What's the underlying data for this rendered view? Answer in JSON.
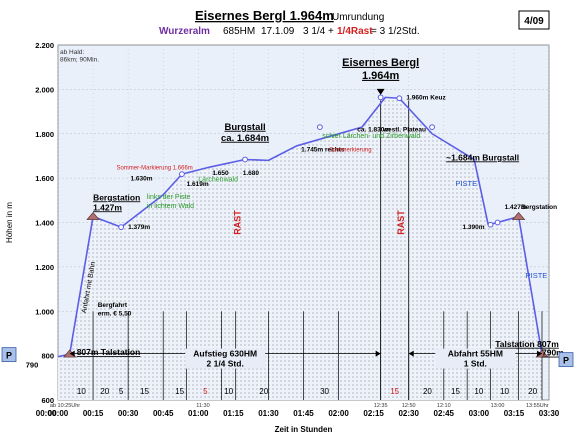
{
  "header": {
    "title": "Eisernes Bergl 1.964m",
    "title_suffix": "Umrundung",
    "subtitle_place": "Wurzeralm",
    "subtitle_hm": "685HM",
    "subtitle_date": "17.1.09",
    "subtitle_time_a": "3 1/4 +",
    "subtitle_rast": "1/4Rast",
    "subtitle_time_b": "= 3 1/2Std.",
    "page_badge": "4/09"
  },
  "colors": {
    "line": "#5b5ee6",
    "plot_bg": "#eaf0fa",
    "grid": "#b8bfcc",
    "rast": "#d42020",
    "forest": "#2a9a2a",
    "piste": "#2050d0",
    "marker_fill": "#b07070",
    "tag_bg": "#a9c1e8",
    "panel_bg": "#e7ecf7"
  },
  "chart_data": {
    "type": "line",
    "title": "Eisernes Bergl 1.964m",
    "xlabel": "Zeit in Stunden",
    "ylabel": "Höhen in m",
    "xlim": [
      0,
      210
    ],
    "ylim": [
      600,
      2200
    ],
    "y_ticks": [
      "600",
      "800",
      "1.000",
      "1.200",
      "1.400",
      "1.600",
      "1.800",
      "2.000",
      "2.200"
    ],
    "x_ticks": [
      "00:00",
      "00:15",
      "00:30",
      "00:45",
      "01:00",
      "01:15",
      "01:30",
      "01:45",
      "02:00",
      "02:15",
      "02:30",
      "02:45",
      "03:00",
      "03:15",
      "03:30"
    ],
    "x_ticks_top_row": [
      "00:00"
    ],
    "series": [
      {
        "x": [
          0,
          5,
          15,
          27,
          45,
          53,
          65,
          80,
          90,
          102,
          130,
          140,
          140,
          146,
          160,
          178,
          184,
          188,
          197,
          207
        ],
        "y": [
          795,
          807,
          1427,
          1379,
          1525,
          1618,
          1650,
          1684,
          1680,
          1745,
          1830,
          1964,
          1964,
          1960,
          1800,
          1684,
          1390,
          1400,
          1427,
          807
        ]
      }
    ],
    "points_of_interest": [
      {
        "x": 5,
        "y": 807
      },
      {
        "x": 15,
        "y": 1427
      },
      {
        "x": 27,
        "y": 1379
      },
      {
        "x": 53,
        "y": 1618
      },
      {
        "x": 80,
        "y": 1684
      },
      {
        "x": 112,
        "y": 1830
      },
      {
        "x": 138,
        "y": 1964
      },
      {
        "x": 146,
        "y": 1960
      },
      {
        "x": 160,
        "y": 1830
      },
      {
        "x": 185,
        "y": 1390
      },
      {
        "x": 188,
        "y": 1400
      },
      {
        "x": 197,
        "y": 1427
      },
      {
        "x": 207,
        "y": 807
      }
    ],
    "hut_markers": [
      {
        "x": 5,
        "y": 807
      },
      {
        "x": 15,
        "y": 1427
      },
      {
        "x": 197,
        "y": 1427
      },
      {
        "x": 207,
        "y": 807
      }
    ],
    "vertical_lines_x": [
      15,
      30,
      45,
      55,
      70,
      76,
      90,
      105,
      120,
      138,
      150,
      165,
      175,
      185,
      197,
      207
    ],
    "segment_minutes": [
      {
        "x": 10,
        "label": "10"
      },
      {
        "x": 20,
        "label": "20"
      },
      {
        "x": 27,
        "label": "5"
      },
      {
        "x": 37,
        "label": "15"
      },
      {
        "x": 52,
        "label": "15"
      },
      {
        "x": 63,
        "label": "5"
      },
      {
        "x": 73,
        "label": "10"
      },
      {
        "x": 88,
        "label": "20"
      },
      {
        "x": 114,
        "label": "30"
      },
      {
        "x": 144,
        "label": "15"
      },
      {
        "x": 158,
        "label": "20"
      },
      {
        "x": 170,
        "label": "15"
      },
      {
        "x": 180,
        "label": "10"
      },
      {
        "x": 191,
        "label": "10"
      },
      {
        "x": 203,
        "label": "20"
      }
    ],
    "time_marks": [
      {
        "x": 3,
        "label": "ab 10:25Uhr"
      },
      {
        "x": 62,
        "label": "11:30"
      },
      {
        "x": 138,
        "label": "12:35"
      },
      {
        "x": 150,
        "label": "12:50"
      },
      {
        "x": 165,
        "label": "12:10"
      },
      {
        "x": 188,
        "label": "13:00"
      },
      {
        "x": 205,
        "label": "13:55Uhr"
      }
    ],
    "annotations": [
      {
        "x": 0,
        "y": 2160,
        "text": "ab Hald:",
        "kind": "note"
      },
      {
        "x": 0,
        "y": 2125,
        "text": "86km; 90Min.",
        "kind": "note"
      },
      {
        "x": 15,
        "y": 1500,
        "text": "Bergstation",
        "kind": "bold"
      },
      {
        "x": 15,
        "y": 1455,
        "text": "1.427m",
        "kind": "bold"
      },
      {
        "x": 30,
        "y": 1370,
        "text": "1.379m",
        "kind": "small"
      },
      {
        "x": 31,
        "y": 1590,
        "text": "1.630m",
        "kind": "small"
      },
      {
        "x": 55,
        "y": 1565,
        "text": "1.619m",
        "kind": "small"
      },
      {
        "x": 66,
        "y": 1615,
        "text": "1.650",
        "kind": "small"
      },
      {
        "x": 79,
        "y": 1615,
        "text": "1.680",
        "kind": "small"
      },
      {
        "x": 104,
        "y": 1720,
        "text": "1.745m rechts",
        "kind": "small"
      },
      {
        "x": 128,
        "y": 1810,
        "text": "ca. 1.830m",
        "kind": "small"
      },
      {
        "x": 139,
        "y": 1810,
        "text": "westl. Plateau",
        "kind": "small"
      },
      {
        "x": 149,
        "y": 1955,
        "text": "1.960m Keuz",
        "kind": "small"
      },
      {
        "x": 166,
        "y": 1680,
        "text": "~1.684m Burgstall",
        "kind": "bold"
      },
      {
        "x": 173,
        "y": 1370,
        "text": "1.390m",
        "kind": "small"
      },
      {
        "x": 191,
        "y": 1460,
        "text": "1.427m",
        "kind": "small"
      },
      {
        "x": 198,
        "y": 1460,
        "text": "Bergstation",
        "kind": "small"
      },
      {
        "x": 187,
        "y": 840,
        "text": "Talstation 807m",
        "kind": "bold"
      },
      {
        "x": 207,
        "y": 800,
        "text": "790m",
        "kind": "bold"
      },
      {
        "x": 8,
        "y": 802,
        "text": "807m Talstation",
        "kind": "bold"
      },
      {
        "x": 12,
        "y": 990,
        "text": "Anfahrt mit Bahn",
        "kind": "rot"
      },
      {
        "x": 17,
        "y": 1020,
        "text": "Bergfahrt",
        "kind": "small"
      },
      {
        "x": 17,
        "y": 980,
        "text": "erm. € 5,50",
        "kind": "small"
      },
      {
        "x": 25,
        "y": 1640,
        "text": "Sommer-Markierung 1.666m",
        "kind": "redsmall"
      },
      {
        "x": 60,
        "y": 1585,
        "text": "Lärchenwald",
        "kind": "forest"
      },
      {
        "x": 38,
        "y": 1505,
        "text": "links der Piste",
        "kind": "forest"
      },
      {
        "x": 38,
        "y": 1465,
        "text": "in lichtem Wald",
        "kind": "forest"
      },
      {
        "x": 113,
        "y": 1780,
        "text": "schier Lärchen- und Zirbenwald",
        "kind": "forest"
      },
      {
        "x": 116,
        "y": 1720,
        "text": "Sommerkierung",
        "kind": "redsmall"
      },
      {
        "x": 170,
        "y": 1565,
        "text": "PISTE",
        "kind": "piste"
      },
      {
        "x": 200,
        "y": 1150,
        "text": "PISTE",
        "kind": "piste"
      },
      {
        "x": 148,
        "y": 1345,
        "text": "RAST",
        "kind": "rast"
      },
      {
        "x": 78,
        "y": 1345,
        "text": "RAST",
        "kind": "rast"
      },
      {
        "x": 88,
        "y": 2030,
        "text": "",
        "kind": "none"
      }
    ],
    "peak_label": {
      "line1": "Eisernes Bergl",
      "line2": "1.964m",
      "x": 138,
      "y": 2070
    },
    "burgstall_label": {
      "line1": "Burgstall",
      "line2": "ca. 1.684m",
      "x": 80,
      "y": 1800
    },
    "aufstieg": {
      "line1": "Aufstieg 630HM",
      "line2": "2 1/4 Std.",
      "x1": 5,
      "x2": 138,
      "y": 800
    },
    "abfahrt": {
      "line1": "Abfahrt 55HM",
      "line2": "1 Std.",
      "x1": 150,
      "x2": 207,
      "y": 800
    },
    "left_tag": {
      "letter": "P",
      "value": "790"
    },
    "right_tag": {
      "letter": "P"
    }
  }
}
